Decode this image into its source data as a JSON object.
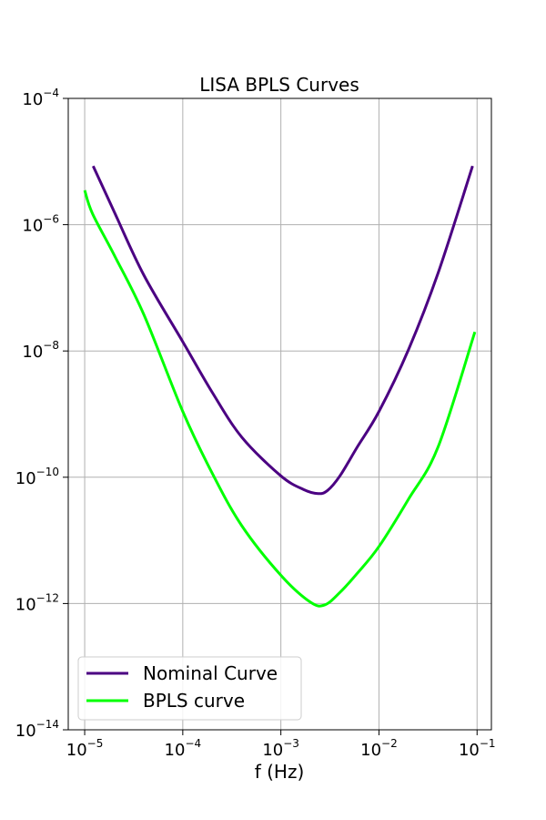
{
  "chart_data": {
    "type": "line",
    "title": "LISA BPLS Curves",
    "xlabel": "f (Hz)",
    "ylabel": "",
    "x_scale": "log",
    "y_scale": "log",
    "xlim": [
      6.8e-06,
      0.14
    ],
    "ylim": [
      1e-14,
      0.0001
    ],
    "grid": true,
    "legend_position": "lower-left",
    "x_ticks": [
      {
        "value": 1e-05,
        "base": "10",
        "exp": "−5"
      },
      {
        "value": 0.0001,
        "base": "10",
        "exp": "−4"
      },
      {
        "value": 0.001,
        "base": "10",
        "exp": "−3"
      },
      {
        "value": 0.01,
        "base": "10",
        "exp": "−2"
      },
      {
        "value": 0.1,
        "base": "10",
        "exp": "−1"
      }
    ],
    "y_ticks": [
      {
        "value": 1e-14,
        "base": "10",
        "exp": "−14"
      },
      {
        "value": 1e-12,
        "base": "10",
        "exp": "−12"
      },
      {
        "value": 1e-10,
        "base": "10",
        "exp": "−10"
      },
      {
        "value": 1e-08,
        "base": "10",
        "exp": "−8"
      },
      {
        "value": 1e-06,
        "base": "10",
        "exp": "−6"
      },
      {
        "value": 0.0001,
        "base": "10",
        "exp": "−4"
      }
    ],
    "series": [
      {
        "name": "Nominal Curve",
        "color": "#4b0082",
        "x": [
          1.22e-05,
          2e-05,
          4e-05,
          0.0001,
          0.0002,
          0.0004,
          0.001,
          0.0017,
          0.0024,
          0.003,
          0.004,
          0.006,
          0.01,
          0.02,
          0.04,
          0.09
        ],
        "y": [
          8.5e-06,
          1.6e-06,
          1.6e-07,
          1.4e-08,
          2.2e-09,
          4.3e-10,
          1.05e-10,
          6.4e-11,
          5.5e-11,
          6.2e-11,
          1.05e-10,
          3e-10,
          1.1e-09,
          1.05e-08,
          1.7e-07,
          8.5e-06
        ]
      },
      {
        "name": "BPLS curve",
        "color": "#00ff00",
        "x": [
          1e-05,
          1.2e-05,
          2e-05,
          4e-05,
          0.0001,
          0.0002,
          0.0004,
          0.001,
          0.002,
          0.0028,
          0.004,
          0.006,
          0.01,
          0.02,
          0.04,
          0.095
        ],
        "y": [
          3.5e-06,
          1.5e-06,
          3.3e-07,
          3.8e-08,
          1.1e-09,
          1.15e-10,
          1.7e-11,
          2.8e-12,
          1.05e-12,
          9.5e-13,
          1.5e-12,
          3e-12,
          8e-12,
          4.5e-11,
          3e-10,
          2e-08
        ]
      }
    ]
  }
}
